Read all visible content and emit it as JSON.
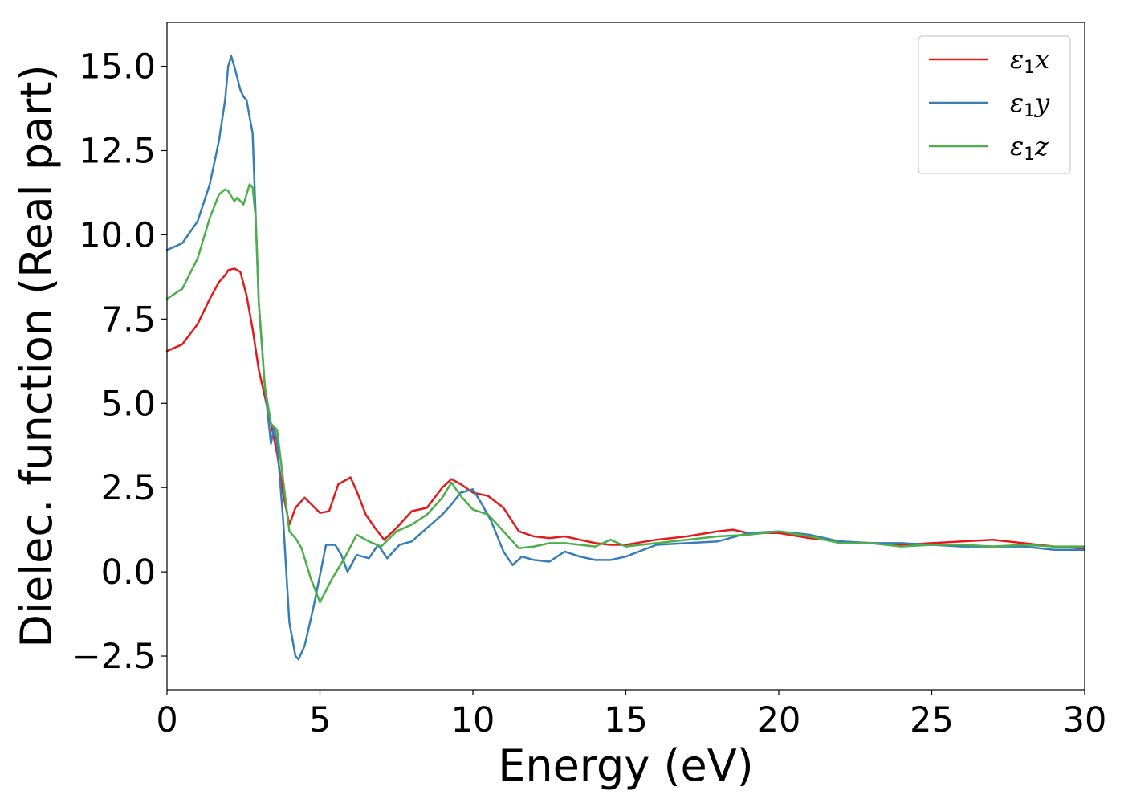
{
  "chart_data": {
    "type": "line",
    "xlabel": "Energy (eV)",
    "ylabel": "Dielec. function (Real part)",
    "xlim": [
      0,
      30
    ],
    "ylim": [
      -3.5,
      16.3
    ],
    "xticks": [
      0,
      5,
      10,
      15,
      20,
      25,
      30
    ],
    "xtick_labels": [
      "0",
      "5",
      "10",
      "15",
      "20",
      "25",
      "30"
    ],
    "yticks": [
      -2.5,
      0,
      2.5,
      5,
      7.5,
      10,
      12.5,
      15
    ],
    "ytick_labels": [
      "−2.5",
      "0.0",
      "2.5",
      "5.0",
      "7.5",
      "10.0",
      "12.5",
      "15.0"
    ],
    "grid": false,
    "legend_position": "top-right",
    "series": [
      {
        "name": "ε1x",
        "legend": {
          "symbol": "ε",
          "sub": "1",
          "axis": "x"
        },
        "color": "#e41a1c",
        "x": [
          0,
          0.5,
          1.0,
          1.4,
          1.7,
          1.9,
          2.0,
          2.2,
          2.4,
          2.6,
          2.8,
          3.0,
          3.2,
          3.4,
          3.6,
          3.8,
          4.0,
          4.2,
          4.5,
          5.0,
          5.3,
          5.6,
          6.0,
          6.2,
          6.5,
          6.8,
          7.1,
          7.5,
          8.0,
          8.5,
          9.0,
          9.3,
          9.6,
          10.0,
          10.5,
          11.0,
          11.5,
          12.0,
          12.5,
          13.0,
          13.5,
          14.0,
          14.5,
          15.0,
          16.0,
          17.0,
          18.0,
          18.5,
          19.0,
          20.0,
          21.0,
          22.0,
          23.0,
          24.0,
          25.0,
          26.0,
          27.0,
          28.0,
          29.0,
          30.0
        ],
        "y": [
          6.55,
          6.75,
          7.35,
          8.1,
          8.6,
          8.8,
          8.95,
          9.0,
          8.9,
          8.2,
          7.2,
          6.0,
          5.2,
          4.4,
          3.5,
          2.3,
          1.4,
          1.9,
          2.2,
          1.75,
          1.8,
          2.6,
          2.8,
          2.4,
          1.7,
          1.3,
          0.95,
          1.3,
          1.8,
          1.9,
          2.5,
          2.75,
          2.6,
          2.35,
          2.25,
          1.9,
          1.2,
          1.05,
          1.0,
          1.05,
          0.95,
          0.85,
          0.8,
          0.8,
          0.95,
          1.05,
          1.2,
          1.25,
          1.15,
          1.15,
          1.0,
          0.9,
          0.85,
          0.8,
          0.85,
          0.9,
          0.95,
          0.85,
          0.75,
          0.7
        ]
      },
      {
        "name": "ε1y",
        "legend": {
          "symbol": "ε",
          "sub": "1",
          "axis": "y"
        },
        "color": "#377eb8",
        "x": [
          0,
          0.5,
          1.0,
          1.4,
          1.7,
          1.9,
          2.0,
          2.1,
          2.2,
          2.4,
          2.5,
          2.6,
          2.8,
          3.0,
          3.2,
          3.4,
          3.5,
          3.6,
          3.8,
          4.0,
          4.2,
          4.3,
          4.5,
          4.8,
          5.2,
          5.5,
          5.7,
          5.9,
          6.2,
          6.6,
          6.9,
          7.2,
          7.6,
          8.0,
          8.5,
          9.0,
          9.3,
          9.6,
          10.0,
          10.3,
          10.6,
          11.0,
          11.3,
          11.6,
          12.0,
          12.5,
          13.0,
          13.5,
          14.0,
          14.5,
          15.0,
          16.0,
          17.0,
          18.0,
          19.0,
          20.0,
          21.0,
          22.0,
          23.0,
          24.0,
          25.0,
          26.0,
          27.0,
          28.0,
          29.0,
          30.0
        ],
        "y": [
          9.55,
          9.75,
          10.4,
          11.5,
          12.8,
          14.0,
          15.0,
          15.3,
          15.0,
          14.3,
          14.1,
          14.0,
          13.0,
          8.0,
          5.5,
          3.8,
          4.3,
          3.8,
          1.5,
          -1.5,
          -2.5,
          -2.6,
          -2.2,
          -1.0,
          0.8,
          0.8,
          0.5,
          0.0,
          0.5,
          0.4,
          0.8,
          0.4,
          0.8,
          0.9,
          1.3,
          1.7,
          2.0,
          2.35,
          2.45,
          2.0,
          1.5,
          0.6,
          0.2,
          0.45,
          0.35,
          0.3,
          0.6,
          0.45,
          0.35,
          0.35,
          0.45,
          0.8,
          0.85,
          0.9,
          1.15,
          1.2,
          1.1,
          0.9,
          0.85,
          0.85,
          0.8,
          0.75,
          0.75,
          0.75,
          0.65,
          0.65
        ]
      },
      {
        "name": "ε1z",
        "legend": {
          "symbol": "ε",
          "sub": "1",
          "axis": "z"
        },
        "color": "#4daf4a",
        "x": [
          0,
          0.5,
          1.0,
          1.4,
          1.7,
          1.9,
          2.0,
          2.2,
          2.3,
          2.5,
          2.6,
          2.7,
          2.8,
          2.9,
          3.0,
          3.2,
          3.4,
          3.6,
          3.8,
          4.0,
          4.2,
          4.4,
          4.7,
          5.0,
          5.4,
          5.8,
          6.2,
          6.6,
          7.0,
          7.5,
          8.0,
          8.5,
          9.0,
          9.3,
          9.6,
          10.0,
          10.5,
          11.0,
          11.5,
          12.0,
          12.5,
          13.0,
          13.5,
          14.0,
          14.5,
          15.0,
          16.0,
          17.0,
          18.0,
          19.0,
          20.0,
          21.0,
          22.0,
          23.0,
          24.0,
          25.0,
          26.0,
          27.0,
          28.0,
          29.0,
          30.0
        ],
        "y": [
          8.1,
          8.4,
          9.3,
          10.5,
          11.2,
          11.35,
          11.3,
          11.0,
          11.1,
          10.9,
          11.2,
          11.5,
          11.4,
          10.5,
          8.0,
          5.5,
          4.4,
          4.2,
          2.7,
          1.2,
          1.0,
          0.7,
          -0.2,
          -0.9,
          -0.2,
          0.4,
          1.1,
          0.9,
          0.75,
          1.2,
          1.4,
          1.7,
          2.2,
          2.65,
          2.25,
          1.85,
          1.7,
          1.2,
          0.7,
          0.75,
          0.85,
          0.85,
          0.8,
          0.75,
          0.95,
          0.75,
          0.85,
          0.95,
          1.05,
          1.1,
          1.2,
          1.05,
          0.85,
          0.85,
          0.75,
          0.8,
          0.8,
          0.75,
          0.8,
          0.75,
          0.75
        ]
      }
    ]
  }
}
